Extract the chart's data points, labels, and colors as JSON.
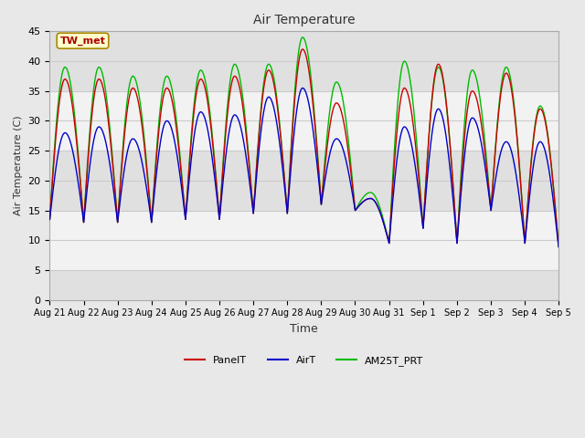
{
  "title": "Air Temperature",
  "xlabel": "Time",
  "ylabel": "Air Temperature (C)",
  "annotation": "TW_met",
  "ylim": [
    0,
    45
  ],
  "yticks": [
    0,
    5,
    10,
    15,
    20,
    25,
    30,
    35,
    40,
    45
  ],
  "legend_labels": [
    "PanelT",
    "AirT",
    "AM25T_PRT"
  ],
  "legend_colors": [
    "#cc0000",
    "#0000cc",
    "#00bb00"
  ],
  "fig_bg_color": "#e8e8e8",
  "plot_bg_color": "#e8e8e8",
  "band_light": "#f2f2f2",
  "band_dark": "#e0e0e0",
  "grid_color": "#cccccc",
  "n_days": 15,
  "start_day": 21,
  "peaks_panel": [
    37,
    37,
    35.5,
    35.5,
    37,
    37.5,
    38.5,
    42,
    33,
    17,
    35.5,
    39.5,
    35,
    38,
    32
  ],
  "peaks_air": [
    28,
    29,
    27,
    30,
    31.5,
    31,
    34,
    35.5,
    27,
    17,
    29,
    32,
    30.5,
    26.5,
    26.5
  ],
  "peaks_am25": [
    39,
    39,
    37.5,
    37.5,
    38.5,
    39.5,
    39.5,
    44,
    36.5,
    18,
    40,
    39,
    38.5,
    39,
    32.5
  ],
  "troughs_all": [
    13.5,
    13,
    13,
    13,
    13.5,
    13.5,
    14.5,
    14.5,
    16,
    15,
    9.5,
    12,
    9.5,
    15,
    9.5,
    8.5
  ]
}
